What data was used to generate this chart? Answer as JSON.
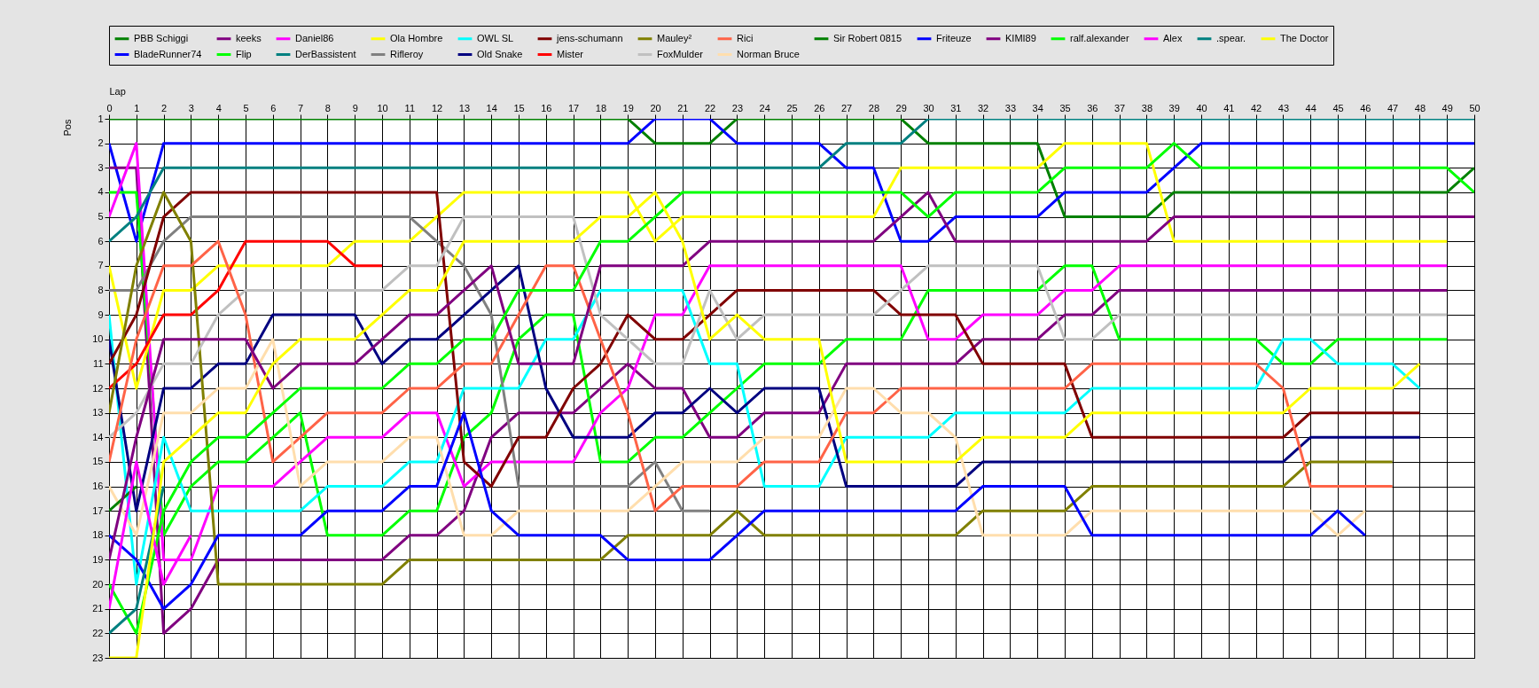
{
  "chart_data": {
    "type": "line",
    "xlabel": "Lap",
    "ylabel": "Pos",
    "x": [
      0,
      1,
      2,
      3,
      4,
      5,
      6,
      7,
      8,
      9,
      10,
      11,
      12,
      13,
      14,
      15,
      16,
      17,
      18,
      19,
      20,
      21,
      22,
      23,
      24,
      25,
      26,
      27,
      28,
      29,
      30,
      31,
      32,
      33,
      34,
      35,
      36,
      37,
      38,
      39,
      40,
      41,
      42,
      43,
      44,
      45,
      46,
      47,
      48,
      49,
      50
    ],
    "xlim": [
      0,
      50
    ],
    "xticks": [
      0,
      1,
      2,
      3,
      4,
      5,
      6,
      7,
      8,
      9,
      10,
      11,
      12,
      13,
      14,
      15,
      16,
      17,
      18,
      19,
      20,
      21,
      22,
      23,
      24,
      25,
      26,
      27,
      28,
      29,
      30,
      31,
      32,
      33,
      34,
      35,
      36,
      37,
      38,
      39,
      40,
      41,
      42,
      43,
      44,
      45,
      46,
      47,
      48,
      49,
      50
    ],
    "ylim": [
      23,
      1
    ],
    "yticks": [
      1,
      2,
      3,
      4,
      5,
      6,
      7,
      8,
      9,
      10,
      11,
      12,
      13,
      14,
      15,
      16,
      17,
      18,
      19,
      20,
      21,
      22,
      23
    ],
    "grid": true,
    "legend": "top",
    "line_style": "solid",
    "series": [
      {
        "name": "PBB Schiggi",
        "color": "#008000",
        "values": [
          1,
          1,
          1,
          1,
          1,
          1,
          1,
          1,
          1,
          1,
          1,
          1,
          1,
          1,
          1,
          1,
          1,
          1,
          1,
          1,
          2,
          2,
          2,
          1,
          1,
          1,
          1,
          1,
          1,
          1,
          2,
          2,
          2,
          2,
          2,
          5,
          5,
          5,
          5,
          4,
          4,
          4,
          4,
          4,
          4,
          4,
          4,
          4,
          4,
          4,
          3
        ]
      },
      {
        "name": "BladeRunner74",
        "color": "#0000ff",
        "values": [
          2,
          6,
          2,
          2,
          2,
          2,
          2,
          2,
          2,
          2,
          2,
          2,
          2,
          2,
          2,
          2,
          2,
          2,
          2,
          2,
          1,
          1,
          1,
          2,
          2,
          2,
          2,
          3,
          3,
          6,
          6,
          5,
          5,
          5,
          5,
          4,
          4,
          4,
          4,
          3,
          2,
          2,
          2,
          2,
          2,
          2,
          2,
          2,
          2,
          2,
          2
        ]
      },
      {
        "name": "keeks",
        "color": "#800080",
        "values": [
          3,
          3,
          22,
          21,
          19,
          19,
          19,
          19,
          19,
          19,
          19,
          18,
          18,
          17,
          14,
          13,
          13,
          13,
          12,
          11,
          12,
          12,
          14,
          14,
          13,
          13,
          13,
          11,
          11,
          11,
          11,
          11,
          10,
          10,
          10,
          9,
          9,
          8,
          8,
          8,
          8,
          8,
          8,
          8,
          8,
          8,
          8,
          8,
          8,
          8,
          null
        ]
      },
      {
        "name": "Flip",
        "color": "#00ff00",
        "values": [
          4,
          4,
          18,
          16,
          15,
          15,
          14,
          13,
          18,
          18,
          18,
          17,
          17,
          14,
          13,
          10,
          9,
          9,
          15,
          15,
          14,
          14,
          13,
          12,
          11,
          11,
          11,
          10,
          10,
          10,
          8,
          8,
          8,
          8,
          8,
          7,
          7,
          10,
          10,
          10,
          10,
          10,
          10,
          11,
          11,
          10,
          10,
          10,
          10,
          10,
          null
        ]
      },
      {
        "name": "Daniel86",
        "color": "#ff00ff",
        "values": [
          5,
          2,
          19,
          19,
          16,
          16,
          16,
          15,
          14,
          14,
          14,
          13,
          13,
          16,
          15,
          15,
          15,
          15,
          13,
          12,
          9,
          9,
          7,
          7,
          7,
          7,
          7,
          7,
          7,
          7,
          10,
          10,
          9,
          9,
          9,
          8,
          8,
          7,
          7,
          7,
          7,
          7,
          7,
          7,
          7,
          7,
          7,
          7,
          7,
          7,
          null
        ]
      },
      {
        "name": "DerBassistent",
        "color": "#008080",
        "values": [
          6,
          5,
          3,
          3,
          3,
          3,
          3,
          3,
          3,
          3,
          3,
          3,
          3,
          3,
          3,
          3,
          3,
          3,
          3,
          3,
          3,
          3,
          3,
          3,
          3,
          3,
          3,
          2,
          2,
          2,
          1,
          1,
          1,
          1,
          1,
          1,
          1,
          1,
          1,
          1,
          1,
          1,
          1,
          1,
          1,
          1,
          1,
          1,
          1,
          1,
          1
        ]
      },
      {
        "name": "Ola Hombre",
        "color": "#ffff00",
        "values": [
          7,
          12,
          8,
          8,
          7,
          7,
          7,
          7,
          7,
          6,
          6,
          6,
          5,
          4,
          4,
          4,
          4,
          4,
          4,
          4,
          6,
          5,
          5,
          5,
          5,
          5,
          5,
          5,
          5,
          3,
          3,
          3,
          3,
          3,
          3,
          2,
          2,
          2,
          2,
          6,
          6,
          6,
          6,
          6,
          6,
          6,
          6,
          6,
          6,
          6,
          null
        ]
      },
      {
        "name": "Rifleroy",
        "color": "#808080",
        "values": [
          8,
          8,
          6,
          5,
          5,
          5,
          5,
          5,
          5,
          5,
          5,
          5,
          6,
          7,
          9,
          16,
          16,
          16,
          16,
          16,
          15,
          17,
          17,
          null,
          null,
          null,
          null,
          null,
          null,
          null,
          null,
          null,
          null,
          null,
          null,
          null,
          null,
          null,
          null,
          null,
          null,
          null,
          null,
          null,
          null,
          null,
          null,
          null,
          null,
          null,
          null
        ]
      },
      {
        "name": "OWL SL",
        "color": "#00ffff",
        "values": [
          9,
          20,
          14,
          17,
          17,
          17,
          17,
          17,
          16,
          16,
          16,
          15,
          15,
          12,
          12,
          12,
          10,
          10,
          8,
          8,
          8,
          8,
          11,
          11,
          16,
          16,
          16,
          14,
          14,
          14,
          14,
          13,
          13,
          13,
          13,
          13,
          12,
          12,
          12,
          12,
          12,
          12,
          12,
          10,
          10,
          11,
          11,
          11,
          12,
          null,
          null
        ]
      },
      {
        "name": "Old Snake",
        "color": "#000080",
        "values": [
          10,
          17,
          12,
          12,
          11,
          11,
          9,
          9,
          9,
          9,
          11,
          10,
          10,
          9,
          8,
          7,
          12,
          14,
          14,
          14,
          13,
          13,
          12,
          13,
          12,
          12,
          12,
          16,
          16,
          16,
          16,
          16,
          15,
          15,
          15,
          15,
          15,
          15,
          15,
          15,
          15,
          15,
          15,
          15,
          14,
          14,
          14,
          14,
          14,
          null,
          null
        ]
      },
      {
        "name": "jens-schumann",
        "color": "#800000",
        "values": [
          11,
          9,
          5,
          4,
          4,
          4,
          4,
          4,
          4,
          4,
          4,
          4,
          4,
          15,
          16,
          14,
          14,
          12,
          11,
          9,
          10,
          10,
          9,
          8,
          8,
          8,
          8,
          8,
          8,
          9,
          9,
          9,
          11,
          11,
          11,
          11,
          14,
          14,
          14,
          14,
          14,
          14,
          14,
          14,
          13,
          13,
          13,
          13,
          13,
          null,
          null
        ]
      },
      {
        "name": "Mister",
        "color": "#ff0000",
        "values": [
          12,
          11,
          9,
          9,
          8,
          6,
          6,
          6,
          6,
          7,
          7,
          null,
          null,
          null,
          null,
          null,
          null,
          null,
          null,
          null,
          null,
          null,
          null,
          null,
          null,
          null,
          null,
          null,
          null,
          null,
          null,
          null,
          null,
          null,
          null,
          null,
          null,
          null,
          null,
          null,
          null,
          null,
          null,
          null,
          null,
          null,
          null,
          null,
          null,
          null,
          null
        ]
      },
      {
        "name": "Mauley²",
        "color": "#808000",
        "values": [
          13,
          7,
          4,
          6,
          20,
          20,
          20,
          20,
          20,
          20,
          20,
          19,
          19,
          19,
          19,
          19,
          19,
          19,
          19,
          18,
          18,
          18,
          18,
          17,
          18,
          18,
          18,
          18,
          18,
          18,
          18,
          18,
          17,
          17,
          17,
          17,
          16,
          16,
          16,
          16,
          16,
          16,
          16,
          16,
          15,
          15,
          15,
          15,
          null,
          null,
          null
        ]
      },
      {
        "name": "FoxMulder",
        "color": "#c0c0c0",
        "values": [
          14,
          13,
          11,
          11,
          9,
          8,
          8,
          8,
          8,
          8,
          8,
          7,
          7,
          5,
          5,
          5,
          5,
          5,
          9,
          10,
          11,
          11,
          8,
          10,
          9,
          9,
          9,
          9,
          9,
          8,
          7,
          7,
          7,
          7,
          7,
          10,
          10,
          9,
          9,
          9,
          9,
          9,
          9,
          9,
          9,
          9,
          9,
          9,
          9,
          9,
          null
        ]
      },
      {
        "name": "Rici",
        "color": "#ff6347",
        "values": [
          15,
          10,
          7,
          7,
          6,
          9,
          15,
          14,
          13,
          13,
          13,
          12,
          12,
          11,
          11,
          9,
          7,
          7,
          10,
          13,
          17,
          16,
          16,
          16,
          15,
          15,
          15,
          13,
          13,
          12,
          12,
          12,
          12,
          12,
          12,
          12,
          11,
          11,
          11,
          11,
          11,
          11,
          11,
          12,
          16,
          16,
          16,
          16,
          null,
          null,
          null
        ]
      },
      {
        "name": "Norman Bruce",
        "color": "#ffdead",
        "values": [
          16,
          18,
          13,
          13,
          12,
          12,
          10,
          16,
          15,
          15,
          15,
          14,
          14,
          18,
          18,
          17,
          17,
          17,
          17,
          17,
          16,
          15,
          15,
          15,
          14,
          14,
          14,
          12,
          12,
          13,
          13,
          14,
          18,
          18,
          18,
          18,
          17,
          17,
          17,
          17,
          17,
          17,
          17,
          17,
          17,
          18,
          17,
          null,
          null,
          null,
          null
        ]
      },
      {
        "name": "Sir Robert 0815",
        "color": "#008000",
        "values": [
          17,
          16,
          null,
          null,
          null,
          null,
          null,
          null,
          null,
          null,
          null,
          null,
          null,
          null,
          null,
          null,
          null,
          null,
          null,
          null,
          null,
          null,
          null,
          null,
          null,
          null,
          null,
          null,
          null,
          null,
          null,
          null,
          null,
          null,
          null,
          null,
          null,
          null,
          null,
          null,
          null,
          null,
          null,
          null,
          null,
          null,
          null,
          null,
          null,
          null,
          null
        ]
      },
      {
        "name": "Friteuze",
        "color": "#0000ff",
        "values": [
          18,
          19,
          21,
          20,
          18,
          18,
          18,
          18,
          17,
          17,
          17,
          16,
          16,
          13,
          17,
          18,
          18,
          18,
          18,
          19,
          19,
          19,
          19,
          18,
          17,
          17,
          17,
          17,
          17,
          17,
          17,
          17,
          16,
          16,
          16,
          16,
          18,
          18,
          18,
          18,
          18,
          18,
          18,
          18,
          18,
          17,
          18,
          null,
          null,
          null,
          null
        ]
      },
      {
        "name": "KIMI89",
        "color": "#800080",
        "values": [
          19,
          14,
          10,
          10,
          10,
          10,
          12,
          11,
          11,
          11,
          10,
          9,
          9,
          8,
          7,
          11,
          11,
          11,
          7,
          7,
          7,
          7,
          6,
          6,
          6,
          6,
          6,
          6,
          6,
          5,
          4,
          6,
          6,
          6,
          6,
          6,
          6,
          6,
          6,
          5,
          5,
          5,
          5,
          5,
          5,
          5,
          5,
          5,
          5,
          5,
          5
        ]
      },
      {
        "name": "ralf.alexander",
        "color": "#00ff00",
        "values": [
          20,
          22,
          17,
          15,
          14,
          14,
          13,
          12,
          12,
          12,
          12,
          11,
          11,
          10,
          10,
          8,
          8,
          8,
          6,
          6,
          5,
          4,
          4,
          4,
          4,
          4,
          4,
          4,
          4,
          4,
          5,
          4,
          4,
          4,
          4,
          3,
          3,
          3,
          3,
          2,
          3,
          3,
          3,
          3,
          3,
          3,
          3,
          3,
          3,
          3,
          4
        ]
      },
      {
        "name": "Alex",
        "color": "#ff00ff",
        "values": [
          21,
          15,
          20,
          18,
          null,
          null,
          null,
          null,
          null,
          null,
          null,
          null,
          null,
          null,
          null,
          null,
          null,
          null,
          null,
          null,
          null,
          null,
          null,
          null,
          null,
          null,
          null,
          null,
          null,
          null,
          null,
          null,
          null,
          null,
          null,
          null,
          null,
          null,
          null,
          null,
          null,
          null,
          null,
          null,
          null,
          null,
          null,
          null,
          null,
          null,
          null
        ]
      },
      {
        "name": ".spear.",
        "color": "#008080",
        "values": [
          22,
          21,
          16,
          null,
          null,
          null,
          null,
          null,
          null,
          null,
          null,
          null,
          null,
          null,
          null,
          null,
          null,
          null,
          null,
          null,
          null,
          null,
          null,
          null,
          null,
          null,
          null,
          null,
          null,
          null,
          null,
          null,
          null,
          null,
          null,
          null,
          null,
          null,
          null,
          null,
          null,
          null,
          null,
          null,
          null,
          null,
          null,
          null,
          null,
          null,
          null
        ]
      },
      {
        "name": "The Doctor",
        "color": "#ffff00",
        "values": [
          23,
          23,
          15,
          14,
          13,
          13,
          11,
          10,
          10,
          10,
          9,
          8,
          8,
          6,
          6,
          6,
          6,
          6,
          5,
          5,
          4,
          6,
          10,
          9,
          10,
          10,
          10,
          15,
          15,
          15,
          15,
          15,
          14,
          14,
          14,
          14,
          13,
          13,
          13,
          13,
          13,
          13,
          13,
          13,
          12,
          12,
          12,
          12,
          11,
          null,
          null
        ]
      }
    ]
  }
}
